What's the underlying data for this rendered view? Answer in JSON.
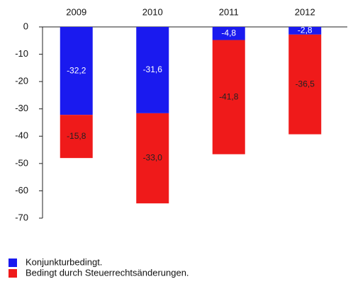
{
  "chart_data": {
    "type": "stacked-bar",
    "categories": [
      "2009",
      "2010",
      "2011",
      "2012"
    ],
    "series": [
      {
        "name": "Konjunkturbedingt.",
        "color": "#1a1aef",
        "values": [
          -32.2,
          -31.6,
          -4.8,
          -2.8
        ],
        "value_labels": [
          "-32,2",
          "-31,6",
          "-4,8",
          "-2,8"
        ]
      },
      {
        "name": "Bedingt durch Steuerrechtsänderungen.",
        "color": "#ef1a1a",
        "values": [
          -15.8,
          -33.0,
          -41.8,
          -36.5
        ],
        "value_labels": [
          "-15,8",
          "-33,0",
          "-41,8",
          "-36,5"
        ]
      }
    ],
    "ylim": [
      -70,
      0
    ],
    "yticks": [
      0,
      -10,
      -20,
      -30,
      -40,
      -50,
      -60,
      -70
    ]
  }
}
